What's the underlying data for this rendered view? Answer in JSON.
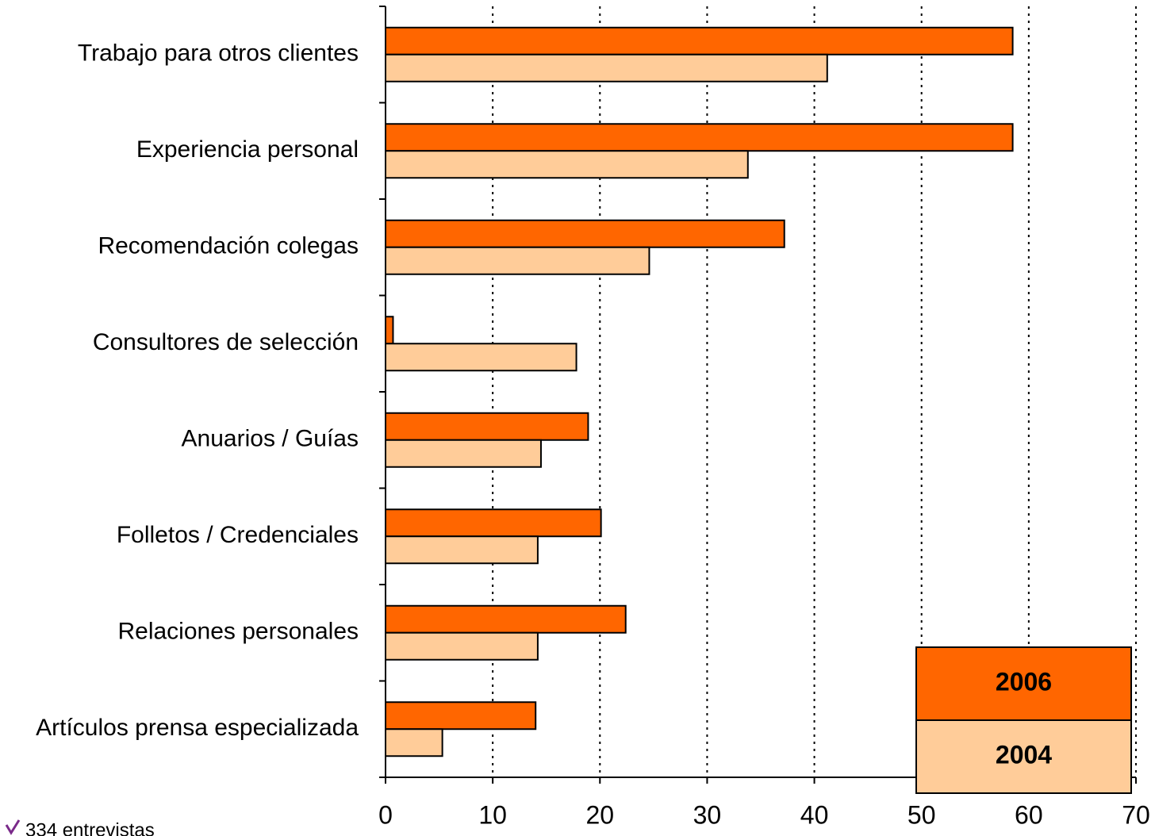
{
  "chart_data": {
    "type": "barh",
    "categories": [
      "Trabajo para otros clientes",
      "Experiencia personal",
      "Recomendación colegas",
      "Consultores de selección",
      "Anuarios / Guías",
      "Folletos / Credenciales",
      "Relaciones personales",
      "Artículos prensa especializada"
    ],
    "series": [
      {
        "name": "2006",
        "color": "#ff6600",
        "values": [
          58.5,
          58.5,
          37.2,
          0.7,
          18.9,
          20.1,
          22.4,
          14.0
        ]
      },
      {
        "name": "2004",
        "color": "#ffcc99",
        "values": [
          41.2,
          33.8,
          24.6,
          17.8,
          14.5,
          14.2,
          14.2,
          5.3
        ]
      }
    ],
    "xlim": [
      0,
      70
    ],
    "xticks": [
      0,
      10,
      20,
      30,
      40,
      50,
      60,
      70
    ],
    "grid": true,
    "legend": "lower right",
    "footnote": "334 entrevistas"
  }
}
